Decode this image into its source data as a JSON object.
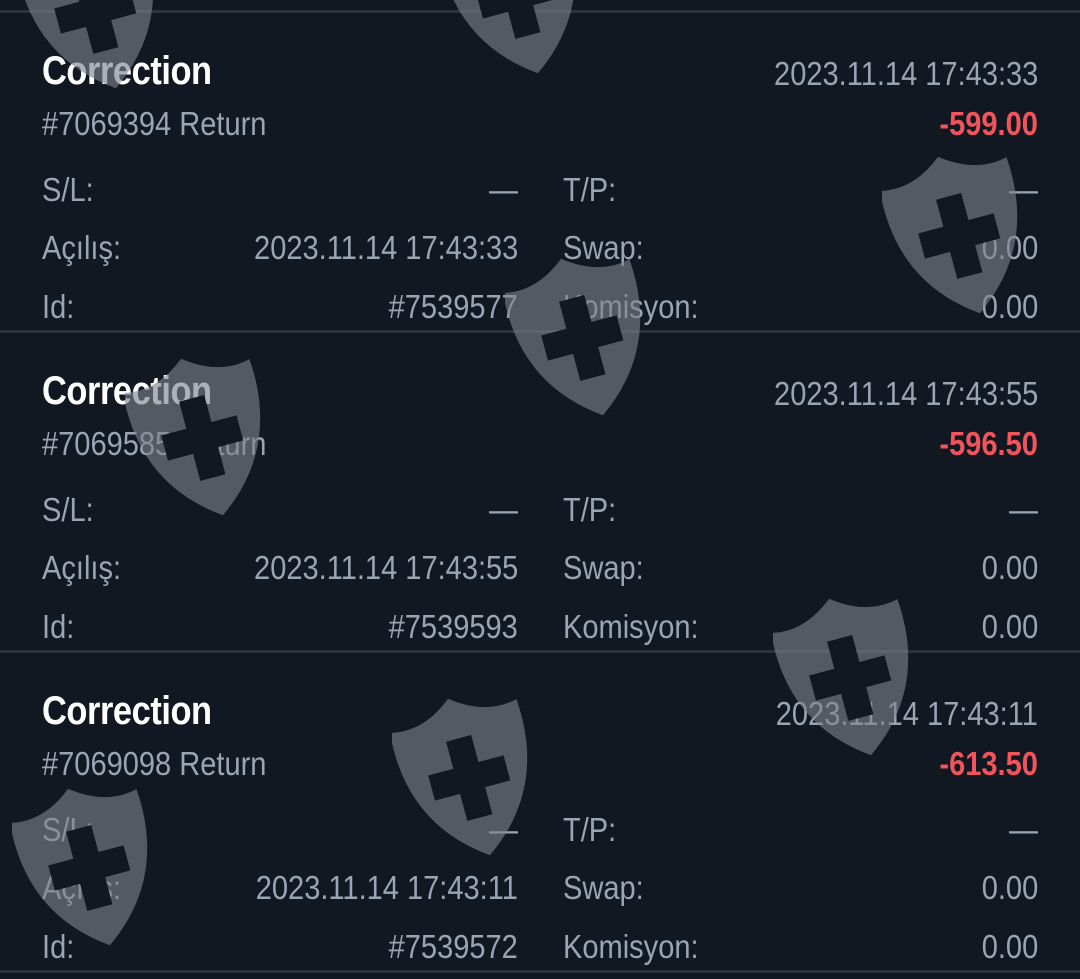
{
  "labels": {
    "sl": "S/L:",
    "tp": "T/P:",
    "open": "Açılış:",
    "swap": "Swap:",
    "id": "Id:",
    "commission": "Komisyon:"
  },
  "colors": {
    "background": "#111821",
    "loss": "#f2545b",
    "text": "#9aa5b4",
    "title": "#ffffff"
  },
  "watermark_icon": "shield-cross-icon",
  "deals": [
    {
      "type": "Correction",
      "time": "2023.11.14 17:43:33",
      "comment": "#7069394 Return",
      "profit": "-599.00",
      "sl": "—",
      "tp": "—",
      "open": "2023.11.14 17:43:33",
      "swap": "0.00",
      "id": "#7539577",
      "commission": "0.00"
    },
    {
      "type": "Correction",
      "time": "2023.11.14 17:43:55",
      "comment": "#7069585 Return",
      "profit": "-596.50",
      "sl": "—",
      "tp": "—",
      "open": "2023.11.14 17:43:55",
      "swap": "0.00",
      "id": "#7539593",
      "commission": "0.00"
    },
    {
      "type": "Correction",
      "time": "2023.11.14 17:43:11",
      "comment": "#7069098 Return",
      "profit": "-613.50",
      "sl": "—",
      "tp": "—",
      "open": "2023.11.14 17:43:11",
      "swap": "0.00",
      "id": "#7539572",
      "commission": "0.00"
    }
  ]
}
